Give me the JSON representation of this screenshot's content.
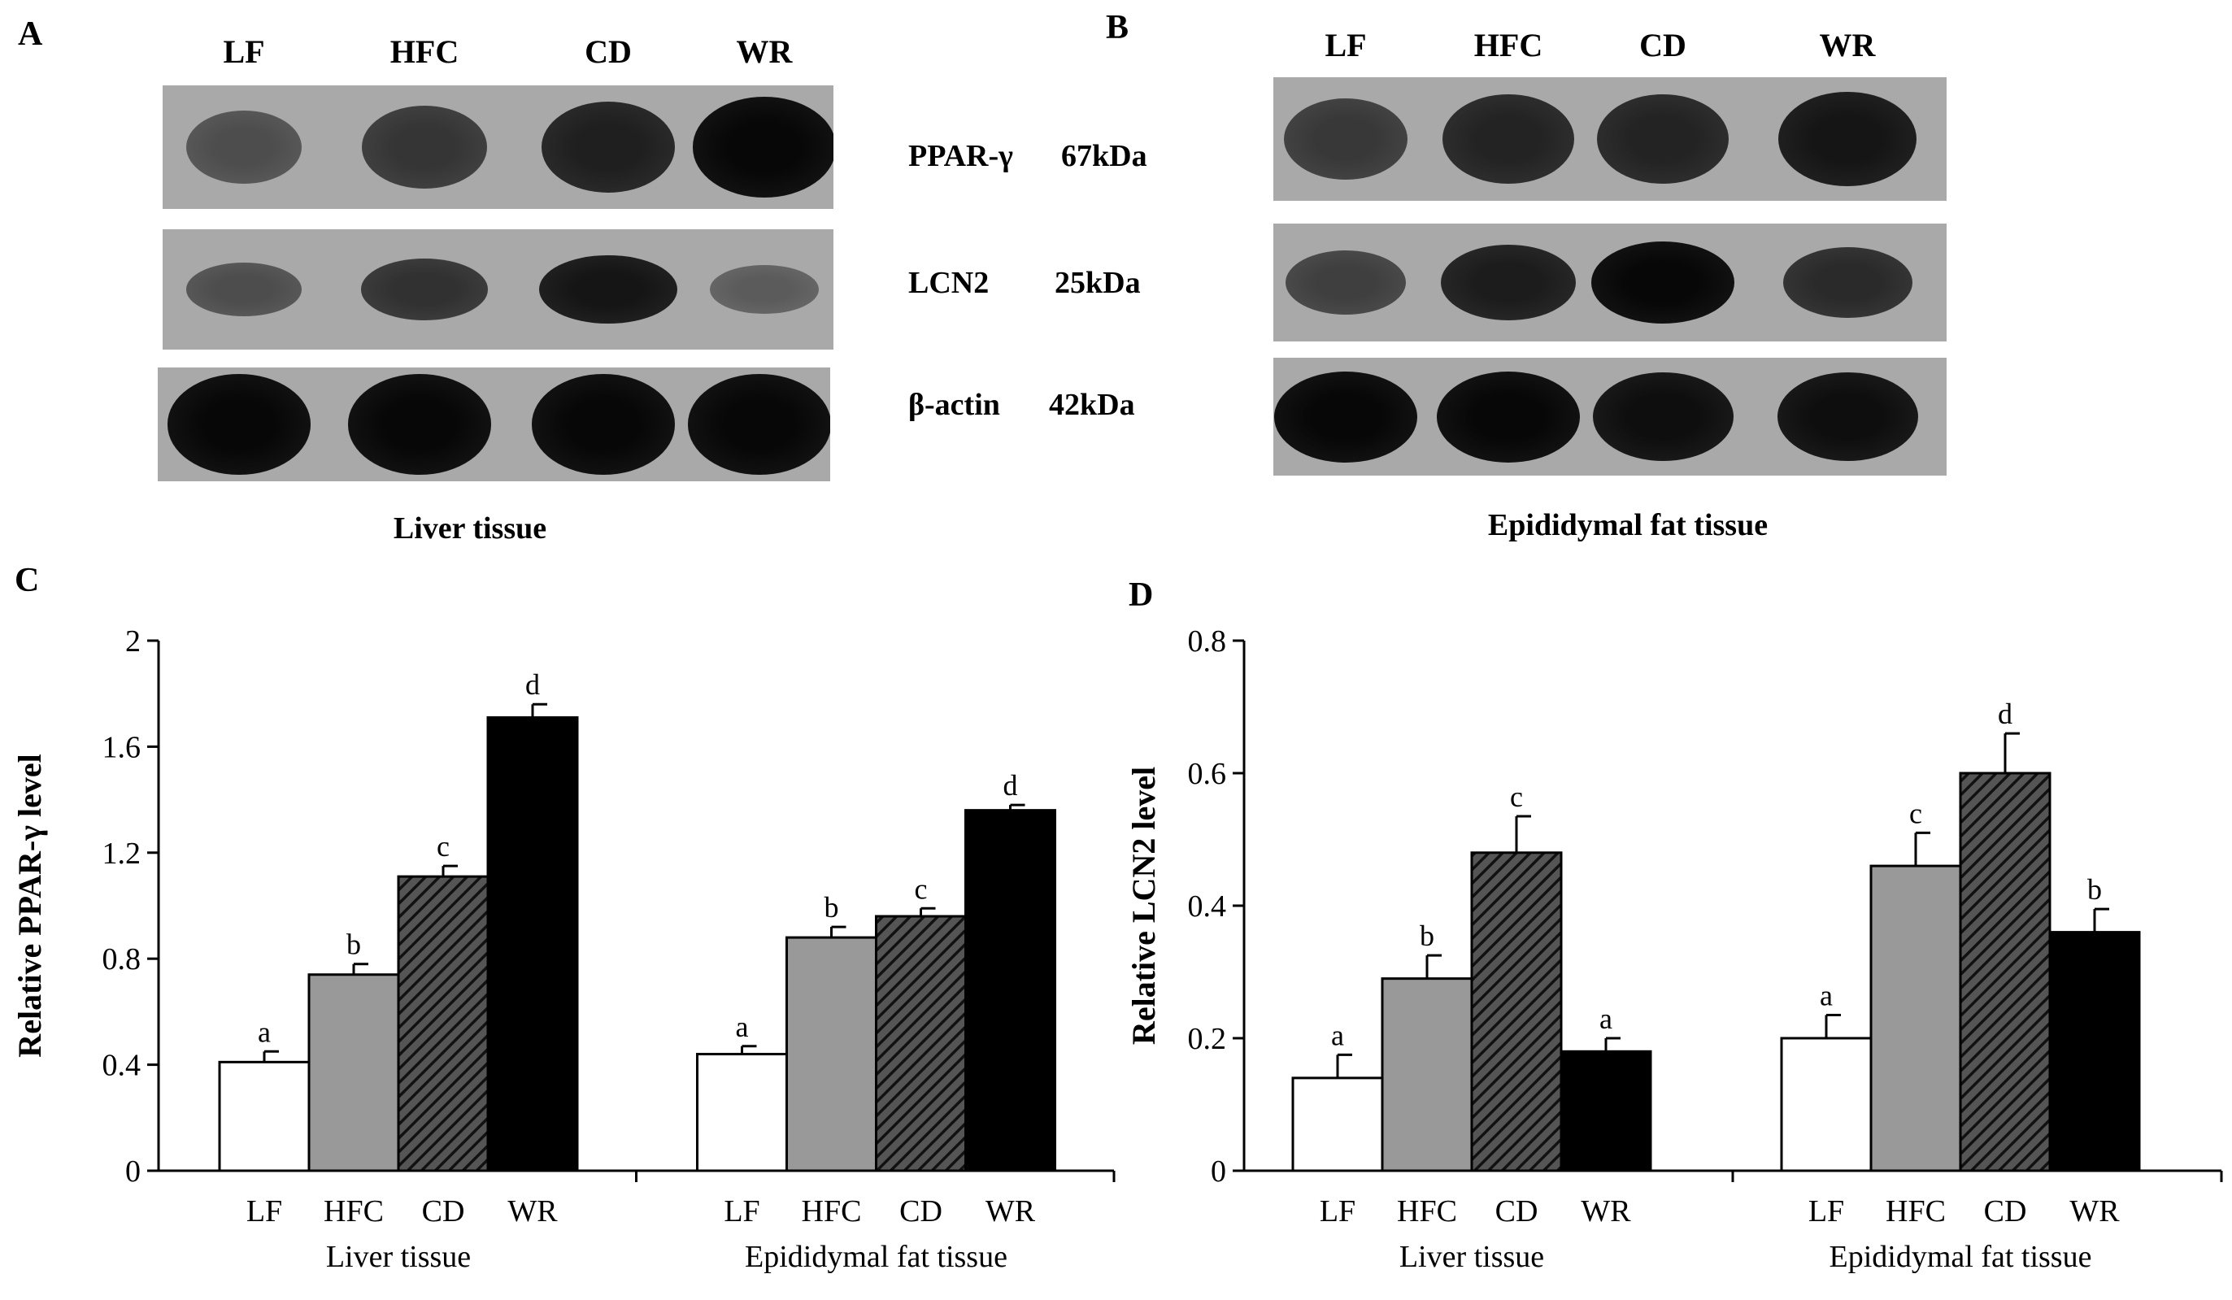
{
  "panels": {
    "a": {
      "letter": "A",
      "lanes": [
        "LF",
        "HFC",
        "CD",
        "WR"
      ],
      "caption": "Liver tissue",
      "band_intensity": {
        "ppar_gamma": [
          0.45,
          0.62,
          0.78,
          0.95
        ],
        "lcn2": [
          0.45,
          0.65,
          0.85,
          0.35
        ],
        "beta_actin": [
          0.95,
          0.95,
          0.95,
          0.95
        ]
      }
    },
    "b": {
      "letter": "B",
      "lanes": [
        "LF",
        "HFC",
        "CD",
        "WR"
      ],
      "caption": "Epididymal fat tissue",
      "band_intensity": {
        "ppar_gamma": [
          0.6,
          0.75,
          0.75,
          0.85
        ],
        "lcn2": [
          0.55,
          0.8,
          0.95,
          0.7
        ],
        "beta_actin": [
          0.95,
          0.95,
          0.9,
          0.9
        ]
      }
    },
    "c": {
      "letter": "C"
    },
    "d": {
      "letter": "D"
    }
  },
  "markers": [
    {
      "protein": "PPAR-γ",
      "size": "67kDa"
    },
    {
      "protein": "LCN2",
      "size": "25kDa"
    },
    {
      "protein": "β-actin",
      "size": "42kDa"
    }
  ],
  "colors": {
    "LF": "#ffffff",
    "HFC": "#999999",
    "CD": "#333333",
    "WR": "#000000"
  },
  "chart_data": [
    {
      "type": "bar",
      "ylabel": "Relative PPAR-γ level",
      "ylim": [
        0,
        2
      ],
      "yticks": [
        "0",
        "0.4",
        "0.8",
        "1.2",
        "1.6",
        "2"
      ],
      "groups": [
        "Liver tissue",
        "Epididymal fat tissue"
      ],
      "categories": [
        "LF",
        "HFC",
        "CD",
        "WR"
      ],
      "series": [
        {
          "group": "Liver tissue",
          "values": [
            0.41,
            0.74,
            1.11,
            1.71
          ],
          "errors": [
            0.04,
            0.04,
            0.04,
            0.05
          ],
          "letters": [
            "a",
            "b",
            "c",
            "d"
          ]
        },
        {
          "group": "Epididymal fat tissue",
          "values": [
            0.44,
            0.88,
            0.96,
            1.36
          ],
          "errors": [
            0.03,
            0.04,
            0.03,
            0.02
          ],
          "letters": [
            "a",
            "b",
            "c",
            "d"
          ]
        }
      ]
    },
    {
      "type": "bar",
      "ylabel": "Relative LCN2 level",
      "ylim": [
        0,
        0.8
      ],
      "yticks": [
        "0",
        "0.2",
        "0.4",
        "0.6",
        "0.8"
      ],
      "groups": [
        "Liver tissue",
        "Epididymal fat tissue"
      ],
      "categories": [
        "LF",
        "HFC",
        "CD",
        "WR"
      ],
      "series": [
        {
          "group": "Liver tissue",
          "values": [
            0.14,
            0.29,
            0.48,
            0.18
          ],
          "errors": [
            0.035,
            0.035,
            0.055,
            0.02
          ],
          "letters": [
            "a",
            "b",
            "c",
            "a"
          ]
        },
        {
          "group": "Epididymal fat tissue",
          "values": [
            0.2,
            0.46,
            0.6,
            0.36
          ],
          "errors": [
            0.035,
            0.05,
            0.06,
            0.035
          ],
          "letters": [
            "a",
            "c",
            "d",
            "b"
          ]
        }
      ]
    }
  ]
}
